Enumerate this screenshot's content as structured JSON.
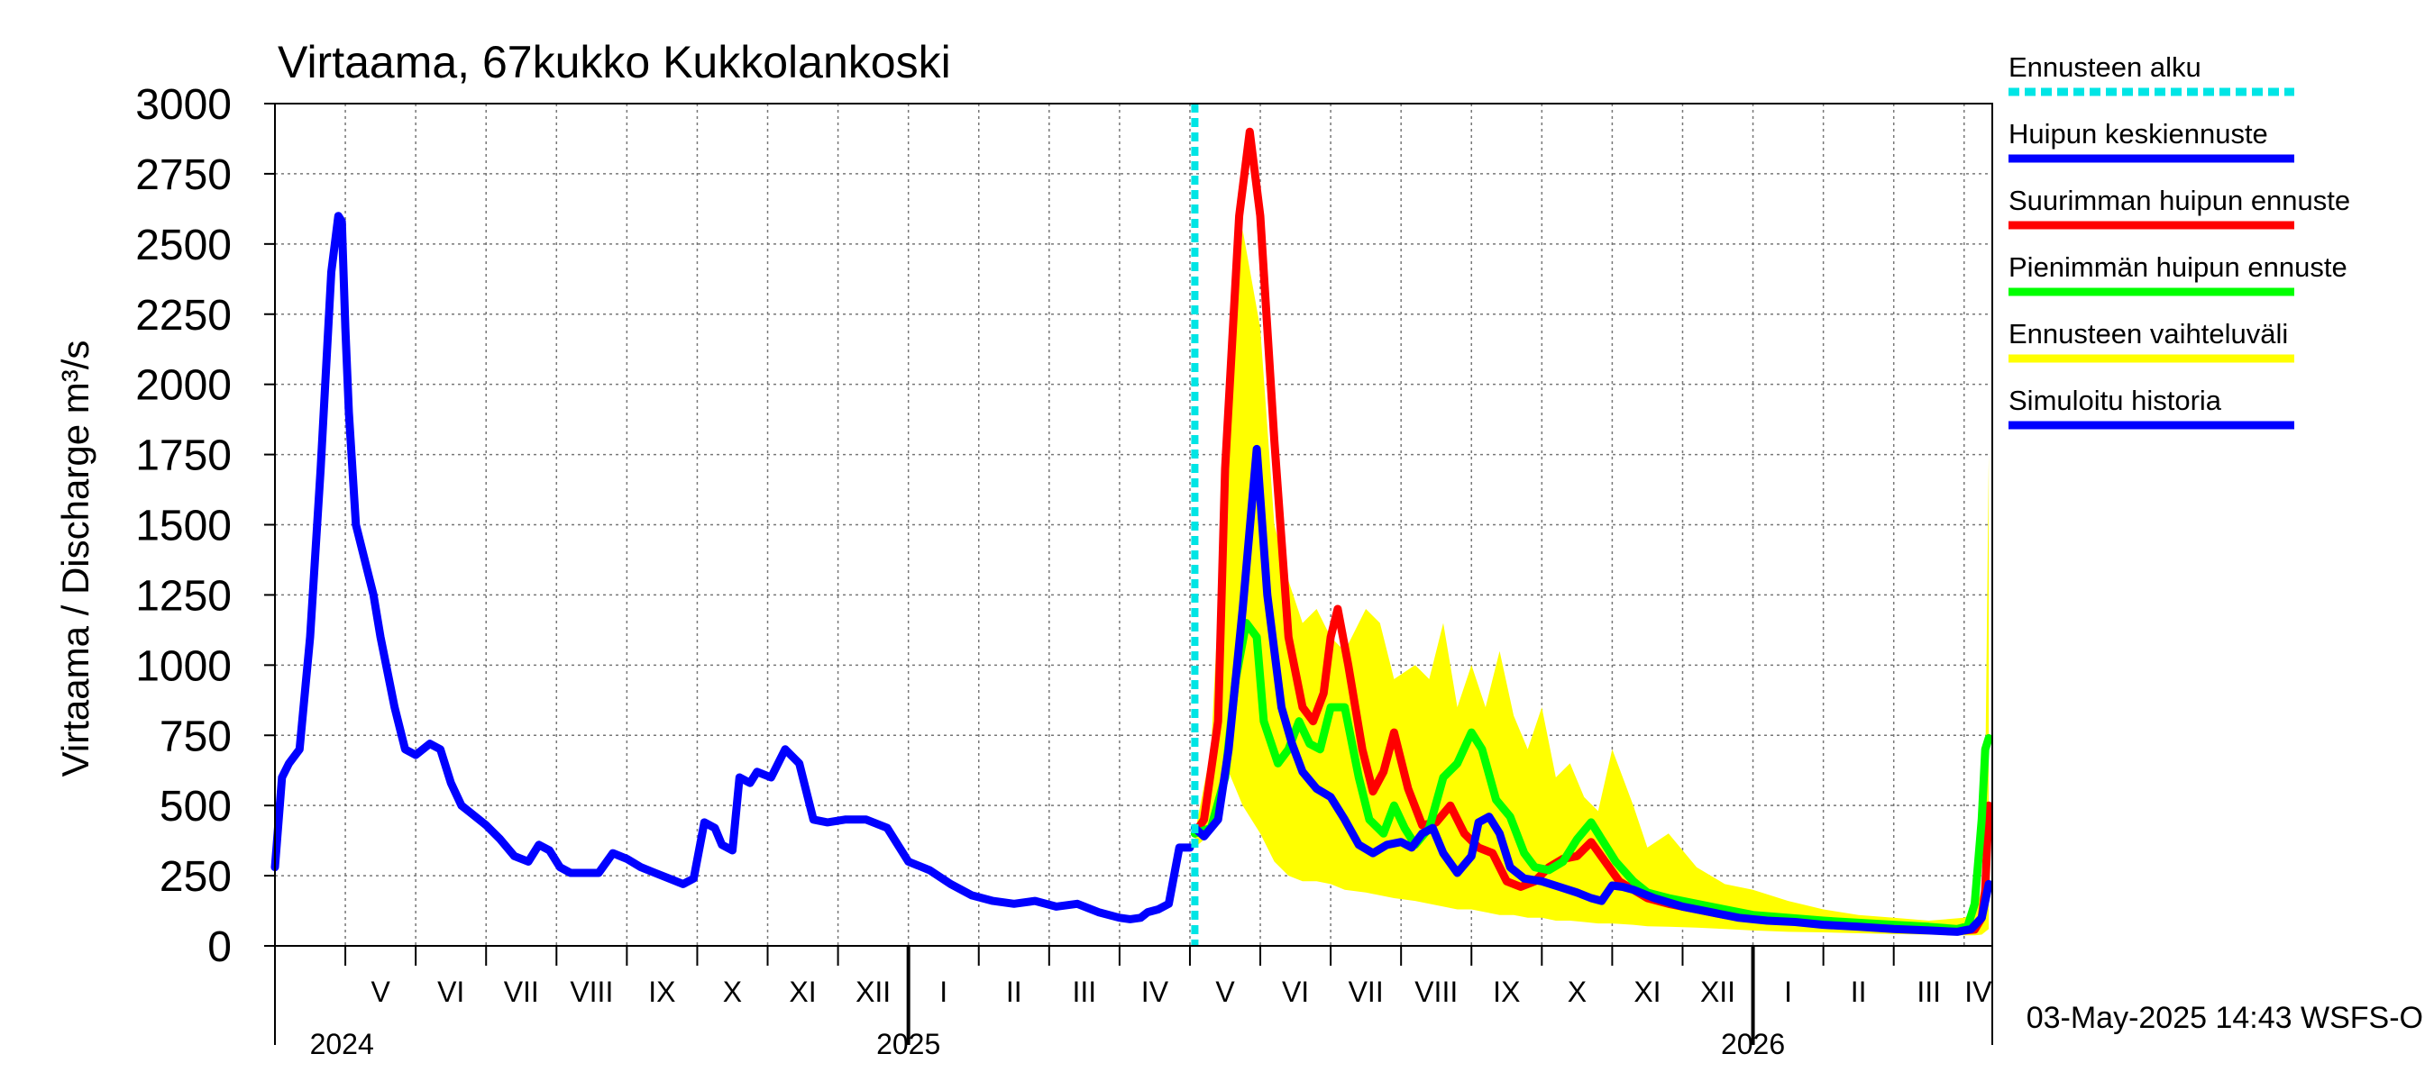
{
  "chart_data": {
    "type": "line",
    "title": "Virtaama, 67kukko Kukkolankoski",
    "ylabel": "Virtaama / Discharge    m³/s",
    "ylim": [
      0,
      3000
    ],
    "yticks": [
      0,
      250,
      500,
      750,
      1000,
      1250,
      1500,
      1750,
      2000,
      2250,
      2500,
      2750,
      3000
    ],
    "x_unit": "months since 2024-04-01",
    "xlim": [
      0,
      24.4
    ],
    "months": [
      {
        "label": "V",
        "start": 1
      },
      {
        "label": "VI",
        "start": 2
      },
      {
        "label": "VII",
        "start": 3
      },
      {
        "label": "VIII",
        "start": 4
      },
      {
        "label": "IX",
        "start": 5
      },
      {
        "label": "X",
        "start": 6
      },
      {
        "label": "XI",
        "start": 7
      },
      {
        "label": "XII",
        "start": 8
      },
      {
        "label": "I",
        "start": 9
      },
      {
        "label": "II",
        "start": 10
      },
      {
        "label": "III",
        "start": 11
      },
      {
        "label": "IV",
        "start": 12
      },
      {
        "label": "V",
        "start": 13
      },
      {
        "label": "VI",
        "start": 14
      },
      {
        "label": "VII",
        "start": 15
      },
      {
        "label": "VIII",
        "start": 16
      },
      {
        "label": "IX",
        "start": 17
      },
      {
        "label": "X",
        "start": 18
      },
      {
        "label": "XI",
        "start": 19
      },
      {
        "label": "XII",
        "start": 20
      },
      {
        "label": "I",
        "start": 21
      },
      {
        "label": "II",
        "start": 22
      },
      {
        "label": "III",
        "start": 23
      },
      {
        "label": "IV",
        "start": 24
      }
    ],
    "years": [
      {
        "label": "2024",
        "at": 0.95
      },
      {
        "label": "2025",
        "at": 9.0
      },
      {
        "label": "2026",
        "at": 21.0
      }
    ],
    "forecast_start": 13.07,
    "series": [
      {
        "name": "Ennusteen vaihteluväli",
        "type": "band",
        "color": "#ffff00",
        "x": [
          13.07,
          13.3,
          13.5,
          13.75,
          14.0,
          14.2,
          14.4,
          14.6,
          14.8,
          15.0,
          15.2,
          15.5,
          15.7,
          15.9,
          16.2,
          16.4,
          16.6,
          16.8,
          17.0,
          17.2,
          17.4,
          17.6,
          17.8,
          18.0,
          18.2,
          18.4,
          18.6,
          18.8,
          19.0,
          19.3,
          19.5,
          19.8,
          20.2,
          20.6,
          21.0,
          21.5,
          22.0,
          22.5,
          23.0,
          23.5,
          24.0,
          24.15,
          24.25,
          24.3,
          24.35
        ],
        "upper": [
          400,
          700,
          1700,
          2550,
          2200,
          1500,
          1300,
          1150,
          1200,
          1100,
          1050,
          1200,
          1150,
          950,
          1000,
          950,
          1150,
          850,
          1000,
          850,
          1050,
          820,
          700,
          850,
          600,
          650,
          530,
          480,
          700,
          500,
          350,
          400,
          280,
          220,
          200,
          160,
          130,
          110,
          100,
          90,
          100,
          120,
          200,
          600,
          1750
        ],
        "lower": [
          350,
          400,
          650,
          500,
          400,
          300,
          250,
          230,
          230,
          220,
          200,
          190,
          180,
          170,
          160,
          150,
          140,
          130,
          130,
          120,
          110,
          110,
          100,
          100,
          90,
          90,
          85,
          80,
          80,
          75,
          70,
          68,
          65,
          60,
          55,
          50,
          48,
          45,
          42,
          40,
          38,
          38,
          40,
          50,
          60
        ]
      },
      {
        "name": "Simuloitu historia",
        "color": "#0000ff",
        "width": 9,
        "x": [
          0,
          0.1,
          0.2,
          0.35,
          0.5,
          0.65,
          0.8,
          0.9,
          0.95,
          1.0,
          1.05,
          1.15,
          1.25,
          1.4,
          1.5,
          1.7,
          1.85,
          2.0,
          2.2,
          2.35,
          2.5,
          2.65,
          2.8,
          3.0,
          3.2,
          3.4,
          3.6,
          3.75,
          3.9,
          4.05,
          4.2,
          4.4,
          4.6,
          4.8,
          5.0,
          5.2,
          5.4,
          5.6,
          5.8,
          5.95,
          6.1,
          6.25,
          6.35,
          6.5,
          6.6,
          6.75,
          6.85,
          7.05,
          7.25,
          7.45,
          7.65,
          7.85,
          8.1,
          8.4,
          8.7,
          9.0,
          9.3,
          9.6,
          9.9,
          10.2,
          10.5,
          10.8,
          11.1,
          11.4,
          11.7,
          12.0,
          12.15,
          12.3,
          12.4,
          12.55,
          12.7,
          12.85,
          13.0
        ],
        "y": [
          280,
          600,
          650,
          700,
          1100,
          1700,
          2400,
          2600,
          2580,
          2200,
          1900,
          1500,
          1400,
          1250,
          1100,
          850,
          700,
          680,
          720,
          700,
          580,
          500,
          470,
          430,
          380,
          320,
          300,
          360,
          340,
          280,
          260,
          260,
          260,
          330,
          310,
          280,
          260,
          240,
          220,
          240,
          440,
          420,
          360,
          340,
          600,
          580,
          620,
          600,
          700,
          650,
          450,
          440,
          450,
          450,
          420,
          300,
          270,
          220,
          180,
          160,
          150,
          160,
          140,
          150,
          120,
          100,
          95,
          100,
          120,
          130,
          150,
          350,
          350
        ]
      },
      {
        "name": "Suurimman huipun ennuste",
        "color": "#ff0000",
        "width": 9,
        "x": [
          13.07,
          13.2,
          13.4,
          13.5,
          13.7,
          13.85,
          14.0,
          14.2,
          14.4,
          14.6,
          14.75,
          14.9,
          15.0,
          15.1,
          15.25,
          15.45,
          15.6,
          15.75,
          15.9,
          16.1,
          16.3,
          16.5,
          16.7,
          16.9,
          17.1,
          17.3,
          17.5,
          17.7,
          17.9,
          18.1,
          18.3,
          18.5,
          18.7,
          18.9,
          19.1,
          19.3,
          19.5,
          19.8,
          20.2,
          20.6,
          21.0,
          21.5,
          22.0,
          22.5,
          23.0,
          23.5,
          24.0,
          24.15,
          24.25,
          24.3,
          24.35
        ],
        "y": [
          400,
          450,
          800,
          1700,
          2600,
          2900,
          2600,
          1800,
          1100,
          850,
          800,
          900,
          1100,
          1200,
          1000,
          700,
          550,
          620,
          760,
          560,
          430,
          440,
          500,
          400,
          350,
          330,
          230,
          210,
          230,
          280,
          310,
          320,
          370,
          300,
          230,
          200,
          170,
          150,
          130,
          110,
          100,
          90,
          80,
          75,
          68,
          60,
          55,
          58,
          100,
          200,
          500
        ]
      },
      {
        "name": "Pienimmän huipun ennuste",
        "color": "#00ff00",
        "width": 9,
        "x": [
          13.07,
          13.3,
          13.5,
          13.65,
          13.8,
          13.95,
          14.05,
          14.25,
          14.4,
          14.55,
          14.7,
          14.85,
          15.0,
          15.2,
          15.4,
          15.55,
          15.75,
          15.9,
          16.05,
          16.2,
          16.4,
          16.6,
          16.8,
          17.0,
          17.15,
          17.35,
          17.55,
          17.75,
          17.9,
          18.1,
          18.3,
          18.5,
          18.7,
          18.85,
          19.05,
          19.3,
          19.5,
          19.8,
          20.2,
          20.6,
          21.0,
          21.5,
          22.0,
          22.5,
          23.0,
          23.5,
          23.9,
          24.05,
          24.15,
          24.25,
          24.3,
          24.35
        ],
        "y": [
          400,
          420,
          600,
          950,
          1150,
          1100,
          800,
          650,
          700,
          800,
          720,
          700,
          850,
          850,
          600,
          450,
          400,
          500,
          420,
          360,
          420,
          600,
          650,
          760,
          700,
          520,
          460,
          330,
          280,
          270,
          300,
          380,
          440,
          380,
          300,
          230,
          190,
          170,
          150,
          130,
          110,
          100,
          90,
          82,
          75,
          68,
          60,
          70,
          150,
          450,
          700,
          740
        ]
      },
      {
        "name": "Huipun keskiennuste",
        "color": "#0000ff",
        "width": 9,
        "x": [
          13.07,
          13.2,
          13.4,
          13.55,
          13.75,
          13.95,
          14.1,
          14.3,
          14.45,
          14.6,
          14.8,
          15.0,
          15.2,
          15.4,
          15.6,
          15.8,
          16.0,
          16.15,
          16.3,
          16.45,
          16.6,
          16.8,
          17.0,
          17.1,
          17.25,
          17.4,
          17.55,
          17.75,
          18.0,
          18.25,
          18.5,
          18.7,
          18.85,
          19.0,
          19.15,
          19.3,
          19.6,
          20.0,
          20.4,
          20.8,
          21.2,
          21.6,
          22.0,
          22.5,
          23.0,
          23.5,
          23.9,
          24.1,
          24.25,
          24.35
        ],
        "y": [
          420,
          390,
          450,
          700,
          1200,
          1770,
          1250,
          850,
          720,
          620,
          560,
          530,
          450,
          360,
          330,
          360,
          370,
          350,
          400,
          420,
          330,
          260,
          320,
          440,
          460,
          400,
          280,
          240,
          230,
          210,
          190,
          170,
          160,
          215,
          210,
          200,
          170,
          140,
          120,
          100,
          90,
          85,
          75,
          68,
          60,
          55,
          50,
          60,
          100,
          220
        ]
      }
    ],
    "legend": [
      {
        "label": "Ennusteen alku",
        "color": "#00e5e5",
        "style": "dashed"
      },
      {
        "label": "Huipun keskiennuste",
        "color": "#0000ff",
        "style": "solid"
      },
      {
        "label": "Suurimman huipun ennuste",
        "color": "#ff0000",
        "style": "solid"
      },
      {
        "label": "Pienimmän huipun ennuste",
        "color": "#00ff00",
        "style": "solid"
      },
      {
        "label": "Ennusteen vaihteluväli",
        "color": "#ffff00",
        "style": "solid"
      },
      {
        "label": "Simuloitu historia",
        "color": "#0000ff",
        "style": "solid"
      }
    ],
    "legend_position": "right",
    "grid": true,
    "footer": "03-May-2025 14:43 WSFS-O"
  }
}
